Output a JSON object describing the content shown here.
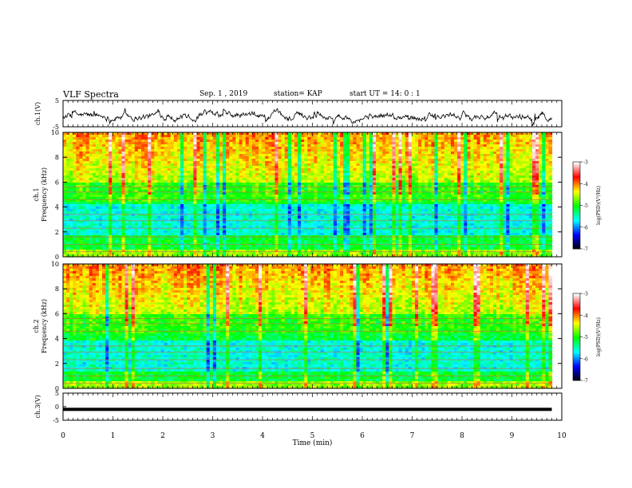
{
  "header": {
    "title": "VLF Spectra",
    "date": "Sep. 1 , 2019",
    "station": "station= KAP",
    "start": "start UT = 14: 0 : 1"
  },
  "colorbar": {
    "label": "log(PSD)(V²/Hz)",
    "ticks": [
      "-3",
      "-4",
      "-5",
      "-6",
      "-7"
    ],
    "colors": [
      "#000000",
      "#0000ff",
      "#00ffff",
      "#00ff00",
      "#ffff00",
      "#ff0000",
      "#ffffff"
    ]
  },
  "chart_data": [
    {
      "type": "line",
      "panel": "ch1-waveform",
      "ylabel": "ch.1(V)",
      "ylim": [
        -5,
        5
      ],
      "yticks": [
        "5",
        "-5"
      ],
      "xlim": [
        0,
        10
      ],
      "data_x_range_min": [
        0,
        9.8
      ],
      "y_range_observed": [
        -4.5,
        3.5
      ],
      "y_mean_approx": -1
    },
    {
      "type": "heatmap",
      "panel": "ch1-spectrogram",
      "ylabel": "ch.1 Frequency (kHz)",
      "ylim": [
        0,
        10
      ],
      "yticks": [
        "0",
        "2",
        "4",
        "6",
        "8",
        "10"
      ],
      "xlim": [
        0,
        10
      ],
      "data_x_range_min": [
        0,
        9.8
      ],
      "colorscale": "log(PSD)(V²/Hz)",
      "zlim": [
        -7,
        -3
      ]
    },
    {
      "type": "heatmap",
      "panel": "ch2-spectrogram",
      "ylabel": "ch.2 Frequency (kHz)",
      "ylim": [
        0,
        10
      ],
      "yticks": [
        "0",
        "2",
        "4",
        "6",
        "8",
        "10"
      ],
      "xlim": [
        0,
        10
      ],
      "data_x_range_min": [
        0,
        9.8
      ],
      "colorscale": "log(PSD)(V²/Hz)",
      "zlim": [
        -7,
        -3
      ]
    },
    {
      "type": "line",
      "panel": "ch3-waveform",
      "ylabel": "ch.3(V)",
      "ylim": [
        -5,
        5
      ],
      "yticks": [
        "5",
        "0",
        "-5"
      ],
      "xlim": [
        0,
        10
      ],
      "data_x_range_min": [
        0,
        9.8
      ],
      "y_constant": -1
    }
  ],
  "xaxis": {
    "label": "Time (min)",
    "ticks": [
      "0",
      "1",
      "2",
      "3",
      "4",
      "5",
      "6",
      "7",
      "8",
      "9",
      "10"
    ]
  }
}
